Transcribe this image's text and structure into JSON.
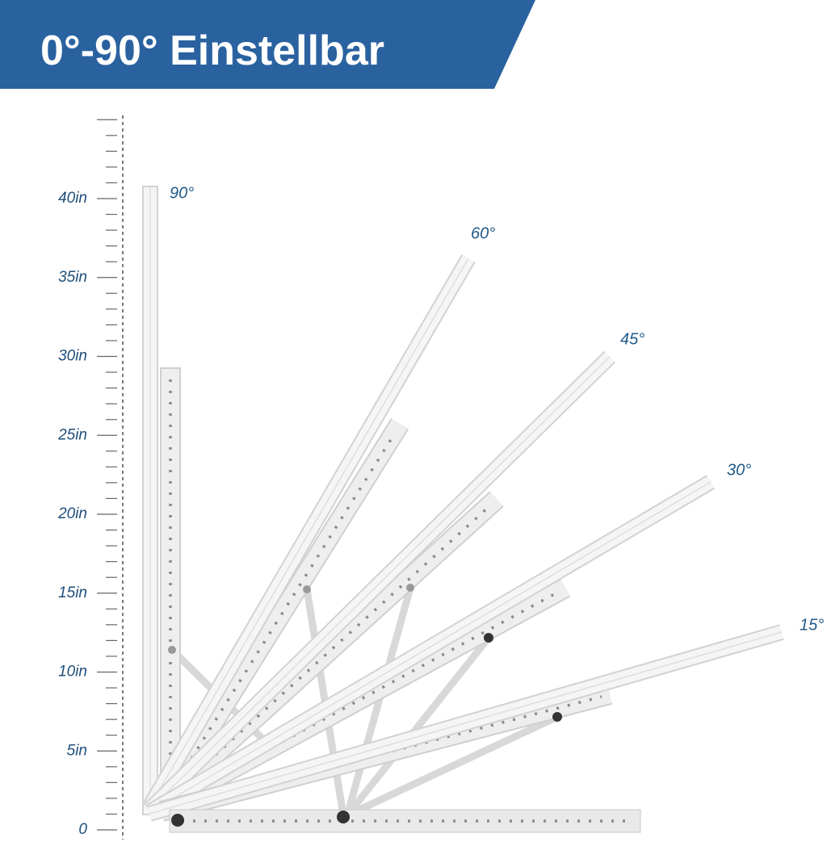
{
  "header": {
    "title": "0°-90° Einstellbar"
  },
  "ruler": {
    "labels": [
      "40in",
      "35in",
      "30in",
      "25in",
      "20in",
      "15in",
      "10in",
      "5in",
      "0"
    ]
  },
  "angles": {
    "labels": [
      "90°",
      "60°",
      "45°",
      "30°",
      "15°"
    ]
  }
}
